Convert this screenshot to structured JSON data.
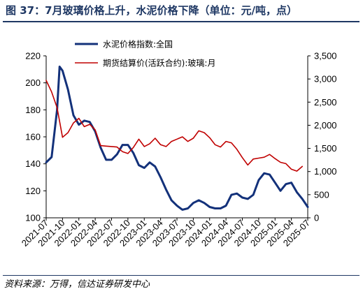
{
  "title": "图 37：7月玻璃价格上升，水泥价格下降（单位：元/吨，点）",
  "source": "资料来源：万得，信达证券研发中心",
  "colors": {
    "cement": "#13317a",
    "glass": "#c00000",
    "accent": "#1f3864"
  },
  "chart_data": {
    "type": "line",
    "title": "",
    "legend_position": "top-right",
    "grid": false,
    "x_ticks": [
      "2021-07",
      "2021-10",
      "2022-01",
      "2022-04",
      "2022-07",
      "2022-10",
      "2023-01",
      "2023-04",
      "2023-07",
      "2023-10",
      "2024-01",
      "2024-04",
      "2024-07",
      "2024-10",
      "2025-01",
      "2025-04",
      "2025-07"
    ],
    "y_left": {
      "ylim": [
        100,
        220
      ],
      "ticks": [
        "100",
        "120",
        "140",
        "160",
        "180",
        "200",
        "220"
      ]
    },
    "y_right": {
      "ylim": [
        0,
        3500
      ],
      "ticks": [
        "0",
        "500",
        "1,000",
        "1,500",
        "2,000",
        "2,500",
        "3,000",
        "3,500"
      ]
    },
    "series": [
      {
        "name": "水泥价格指数:全国",
        "axis": "left",
        "color": "#13317a",
        "points": [
          [
            "2021-07-01",
            141
          ],
          [
            "2021-08-01",
            145
          ],
          [
            "2021-09-01",
            180
          ],
          [
            "2021-09-15",
            212
          ],
          [
            "2021-10-01",
            209
          ],
          [
            "2021-11-01",
            195
          ],
          [
            "2021-12-01",
            176
          ],
          [
            "2022-01-01",
            169
          ],
          [
            "2022-02-01",
            172
          ],
          [
            "2022-03-01",
            171
          ],
          [
            "2022-04-01",
            164
          ],
          [
            "2022-05-01",
            152
          ],
          [
            "2022-06-01",
            143
          ],
          [
            "2022-07-01",
            143
          ],
          [
            "2022-08-01",
            147
          ],
          [
            "2022-09-01",
            154
          ],
          [
            "2022-10-01",
            154
          ],
          [
            "2022-11-01",
            148
          ],
          [
            "2022-12-01",
            139
          ],
          [
            "2023-01-01",
            137
          ],
          [
            "2023-02-01",
            141
          ],
          [
            "2023-03-01",
            138
          ],
          [
            "2023-04-01",
            130
          ],
          [
            "2023-05-01",
            121
          ],
          [
            "2023-06-01",
            113
          ],
          [
            "2023-07-01",
            109
          ],
          [
            "2023-08-01",
            106
          ],
          [
            "2023-09-01",
            107
          ],
          [
            "2023-10-01",
            111
          ],
          [
            "2023-11-01",
            113
          ],
          [
            "2023-12-01",
            111
          ],
          [
            "2024-01-01",
            108
          ],
          [
            "2024-02-01",
            107
          ],
          [
            "2024-03-01",
            107
          ],
          [
            "2024-04-01",
            109
          ],
          [
            "2024-05-01",
            117
          ],
          [
            "2024-06-01",
            118
          ],
          [
            "2024-07-01",
            115
          ],
          [
            "2024-08-01",
            114
          ],
          [
            "2024-09-01",
            117
          ],
          [
            "2024-10-01",
            128
          ],
          [
            "2024-11-01",
            133
          ],
          [
            "2024-12-01",
            132
          ],
          [
            "2025-01-01",
            126
          ],
          [
            "2025-02-01",
            120
          ],
          [
            "2025-03-01",
            125
          ],
          [
            "2025-04-01",
            126
          ],
          [
            "2025-05-01",
            119
          ],
          [
            "2025-06-01",
            114
          ],
          [
            "2025-07-01",
            108
          ]
        ]
      },
      {
        "name": "期货结算价(活跃合约):玻璃:月",
        "axis": "right",
        "color": "#c00000",
        "points": [
          [
            "2021-07-01",
            2970
          ],
          [
            "2021-08-01",
            2720
          ],
          [
            "2021-09-01",
            2380
          ],
          [
            "2021-10-01",
            1740
          ],
          [
            "2021-11-01",
            1840
          ],
          [
            "2021-12-01",
            2050
          ],
          [
            "2022-01-01",
            2150
          ],
          [
            "2022-02-01",
            1970
          ],
          [
            "2022-03-01",
            2020
          ],
          [
            "2022-04-01",
            1900
          ],
          [
            "2022-05-01",
            1560
          ],
          [
            "2022-06-01",
            1550
          ],
          [
            "2022-07-01",
            1540
          ],
          [
            "2022-08-01",
            1530
          ],
          [
            "2022-09-01",
            1430
          ],
          [
            "2022-10-01",
            1390
          ],
          [
            "2022-11-01",
            1520
          ],
          [
            "2022-12-01",
            1700
          ],
          [
            "2023-01-01",
            1540
          ],
          [
            "2023-02-01",
            1600
          ],
          [
            "2023-03-01",
            1720
          ],
          [
            "2023-04-01",
            1580
          ],
          [
            "2023-05-01",
            1540
          ],
          [
            "2023-06-01",
            1650
          ],
          [
            "2023-07-01",
            1700
          ],
          [
            "2023-08-01",
            1750
          ],
          [
            "2023-09-01",
            1650
          ],
          [
            "2023-10-01",
            1720
          ],
          [
            "2023-11-01",
            1880
          ],
          [
            "2023-12-01",
            1840
          ],
          [
            "2024-01-01",
            1730
          ],
          [
            "2024-02-01",
            1580
          ],
          [
            "2024-03-01",
            1530
          ],
          [
            "2024-04-01",
            1650
          ],
          [
            "2024-05-01",
            1620
          ],
          [
            "2024-06-01",
            1480
          ],
          [
            "2024-07-01",
            1300
          ],
          [
            "2024-08-01",
            1140
          ],
          [
            "2024-09-01",
            1270
          ],
          [
            "2024-10-01",
            1290
          ],
          [
            "2024-11-01",
            1310
          ],
          [
            "2024-12-01",
            1370
          ],
          [
            "2025-01-01",
            1280
          ],
          [
            "2025-02-01",
            1200
          ],
          [
            "2025-03-01",
            1170
          ],
          [
            "2025-04-01",
            1050
          ],
          [
            "2025-05-01",
            1010
          ],
          [
            "2025-06-01",
            1110
          ]
        ]
      }
    ]
  }
}
